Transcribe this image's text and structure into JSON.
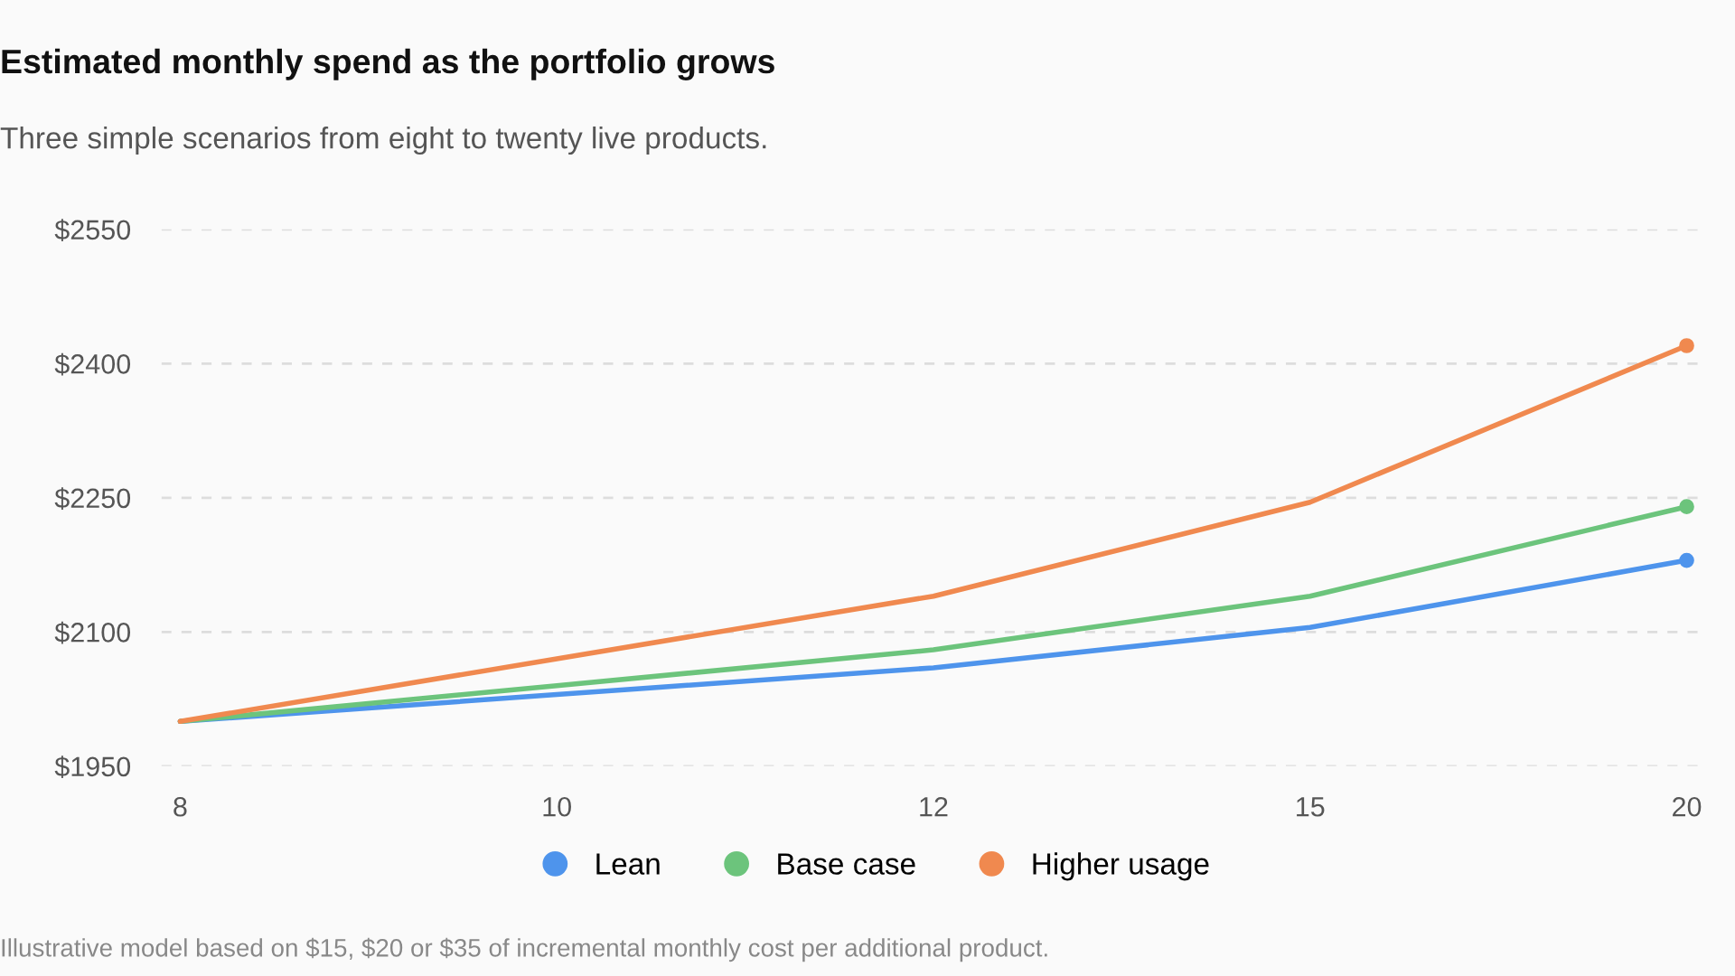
{
  "chart_data": {
    "type": "line",
    "title": "Estimated monthly spend as the portfolio grows",
    "subtitle": "Three simple scenarios from eight to twenty live products.",
    "categories": [
      "8",
      "10",
      "12",
      "15",
      "20"
    ],
    "series": [
      {
        "name": "Lean",
        "color": "#4e94ec",
        "values": [
          2000,
          2030,
          2060,
          2105,
          2180
        ]
      },
      {
        "name": "Base case",
        "color": "#6cc47c",
        "values": [
          2000,
          2040,
          2080,
          2140,
          2240
        ]
      },
      {
        "name": "Higher usage",
        "color": "#f0894f",
        "values": [
          2000,
          2070,
          2140,
          2245,
          2420
        ]
      }
    ],
    "ylim": [
      1950,
      2550
    ],
    "yticks": [
      {
        "value": 1950,
        "label": "$1950"
      },
      {
        "value": 2100,
        "label": "$2100"
      },
      {
        "value": 2250,
        "label": "$2250"
      },
      {
        "value": 2400,
        "label": "$2400"
      },
      {
        "value": 2550,
        "label": "$2550"
      }
    ],
    "grid": "y",
    "legend": "bottom",
    "line_style": "solid",
    "annotations": [
      "Illustrative model based on $15, $20 or $35 of incremental monthly cost per additional product."
    ]
  }
}
